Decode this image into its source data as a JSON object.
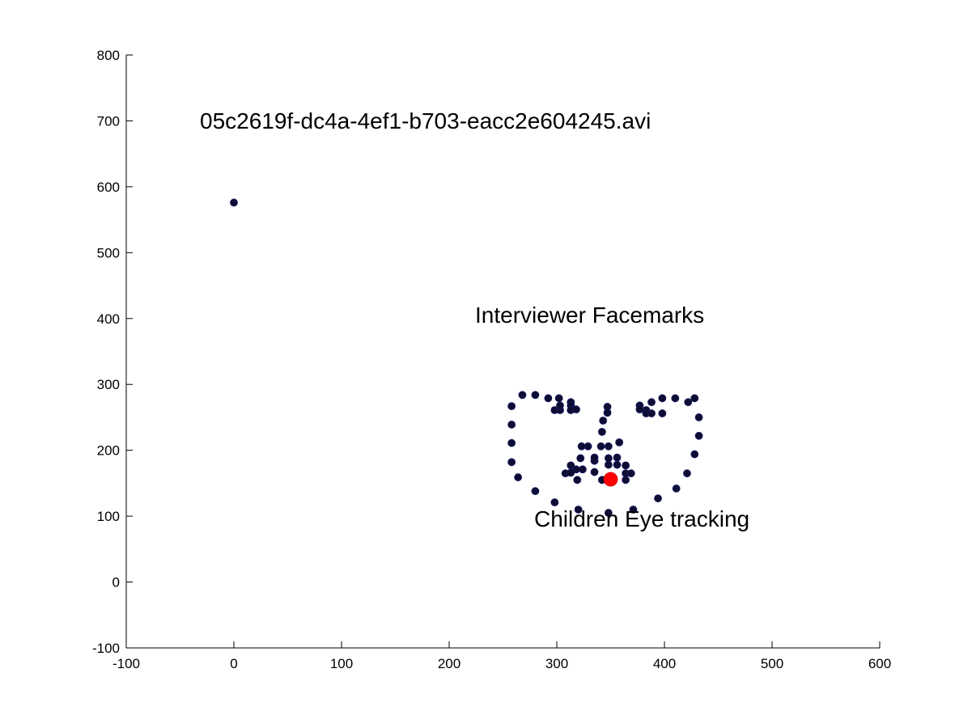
{
  "chart_data": {
    "type": "scatter",
    "title": "",
    "xlabel": "",
    "ylabel": "",
    "xlim": [
      -100,
      600
    ],
    "ylim": [
      -100,
      800
    ],
    "xticks": [
      -100,
      0,
      100,
      200,
      300,
      400,
      500,
      600
    ],
    "yticks": [
      -100,
      0,
      100,
      200,
      300,
      400,
      500,
      600,
      700,
      800
    ],
    "grid": false,
    "legend": "none",
    "annotations": [
      {
        "text": "05c2619f-dc4a-4ef1-b703-eacc2e604245.avi",
        "x": -31,
        "y": 700
      },
      {
        "text": "Interviewer Facemarks",
        "x": 224,
        "y": 400
      },
      {
        "text": "Children Eye tracking",
        "x": 279,
        "y": 91
      }
    ],
    "series": [
      {
        "color": "#0d0d33",
        "marker": "circle",
        "points": [
          [
            0,
            576
          ],
          [
            258,
            267
          ],
          [
            258,
            239
          ],
          [
            258,
            211
          ],
          [
            258,
            182
          ],
          [
            264,
            159
          ],
          [
            280,
            138
          ],
          [
            298,
            121
          ],
          [
            320,
            110
          ],
          [
            348,
            105
          ],
          [
            371,
            110
          ],
          [
            394,
            127
          ],
          [
            411,
            142
          ],
          [
            421,
            165
          ],
          [
            428,
            194
          ],
          [
            432,
            222
          ],
          [
            432,
            250
          ],
          [
            428,
            279
          ],
          [
            268,
            284
          ],
          [
            280,
            284
          ],
          [
            292,
            279
          ],
          [
            302,
            279
          ],
          [
            313,
            273
          ],
          [
            313,
            268
          ],
          [
            377,
            268
          ],
          [
            388,
            273
          ],
          [
            398,
            279
          ],
          [
            410,
            279
          ],
          [
            422,
            273
          ],
          [
            347,
            266
          ],
          [
            347,
            257
          ],
          [
            343,
            245
          ],
          [
            342,
            228
          ],
          [
            341,
            206
          ],
          [
            348,
            206
          ],
          [
            358,
            212
          ],
          [
            329,
            206
          ],
          [
            323,
            206
          ],
          [
            322,
            188
          ],
          [
            335,
            184
          ],
          [
            335,
            189
          ],
          [
            348,
            188
          ],
          [
            356,
            189
          ],
          [
            356,
            178
          ],
          [
            348,
            178
          ],
          [
            335,
            167
          ],
          [
            324,
            171
          ],
          [
            313,
            177
          ],
          [
            318,
            171
          ],
          [
            308,
            165
          ],
          [
            313,
            166
          ],
          [
            319,
            155
          ],
          [
            342,
            155
          ],
          [
            364,
            155
          ],
          [
            364,
            165
          ],
          [
            364,
            177
          ],
          [
            369,
            165
          ],
          [
            298,
            261
          ],
          [
            303,
            261
          ],
          [
            303,
            268
          ],
          [
            313,
            261
          ],
          [
            318,
            262
          ],
          [
            383,
            261
          ],
          [
            383,
            256
          ],
          [
            388,
            256
          ],
          [
            398,
            256
          ],
          [
            377,
            262
          ]
        ]
      },
      {
        "color": "#ff0000",
        "marker": "circle",
        "points": [
          [
            350,
            156
          ]
        ]
      }
    ]
  }
}
